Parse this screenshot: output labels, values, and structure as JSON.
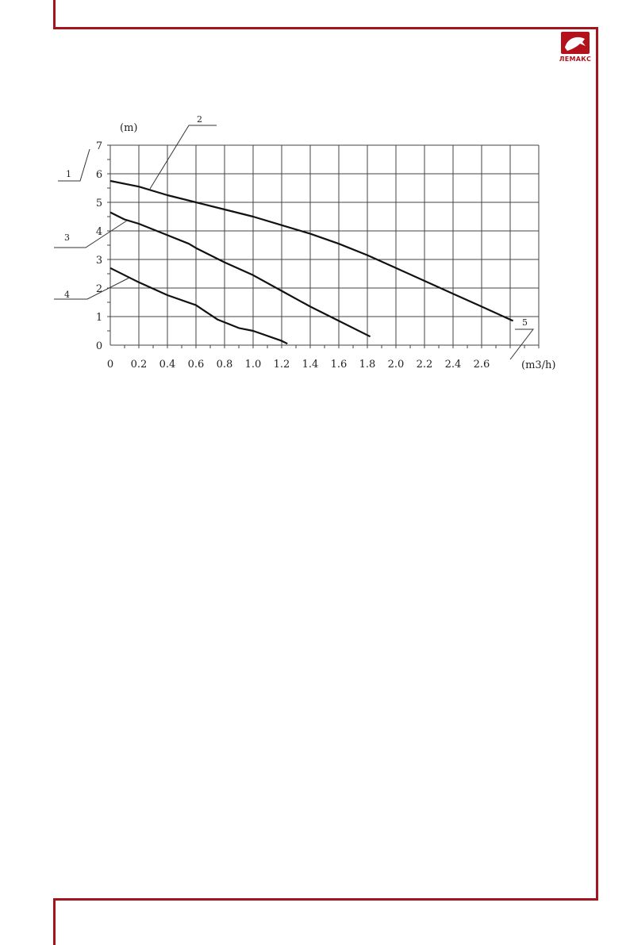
{
  "brand": {
    "logo_text": "ЛЕМАКС",
    "accent_color": "#a3141d"
  },
  "chart_data": {
    "type": "line",
    "title": "",
    "xlabel": "(m3/h)",
    "ylabel": "(m)",
    "xlim": [
      0,
      3.0
    ],
    "ylim": [
      0,
      7
    ],
    "grid": true,
    "x_ticks": [
      "0",
      "0.2",
      "0.4",
      "0.6",
      "0.8",
      "1.0",
      "1.2",
      "1.4",
      "1.6",
      "1.8",
      "2.0",
      "2.2",
      "2.4",
      "2.6"
    ],
    "y_ticks": [
      "0",
      "1",
      "2",
      "3",
      "4",
      "5",
      "6",
      "7"
    ],
    "callouts": [
      "1",
      "2",
      "3",
      "4",
      "5"
    ],
    "series": [
      {
        "x": [
          0,
          0.2,
          0.4,
          0.6,
          0.8,
          1.0,
          1.2,
          1.4,
          1.6,
          1.8,
          2.0,
          2.2,
          2.4,
          2.6,
          2.82
        ],
        "y": [
          5.75,
          5.55,
          5.25,
          5.0,
          4.75,
          4.5,
          4.2,
          3.9,
          3.55,
          3.15,
          2.7,
          2.25,
          1.8,
          1.35,
          0.85
        ]
      },
      {
        "x": [
          0,
          0.1,
          0.2,
          0.4,
          0.55,
          0.6,
          0.8,
          1.0,
          1.2,
          1.4,
          1.6,
          1.82
        ],
        "y": [
          4.65,
          4.4,
          4.25,
          3.85,
          3.55,
          3.4,
          2.9,
          2.45,
          1.9,
          1.35,
          0.85,
          0.3
        ]
      },
      {
        "x": [
          0,
          0.2,
          0.4,
          0.6,
          0.75,
          0.9,
          1.0,
          1.2,
          1.24
        ],
        "y": [
          2.7,
          2.2,
          1.75,
          1.4,
          0.9,
          0.6,
          0.5,
          0.15,
          0.05
        ]
      }
    ]
  }
}
